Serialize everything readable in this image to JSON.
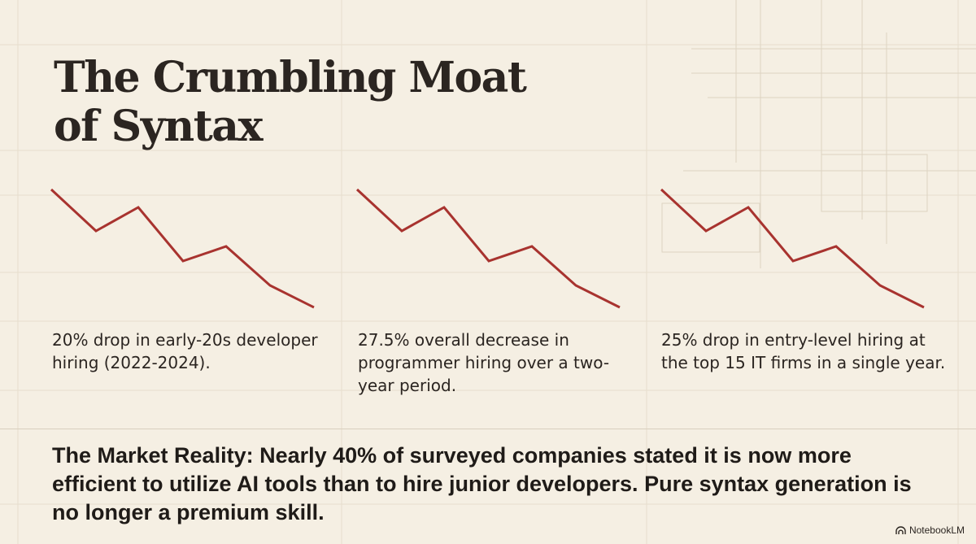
{
  "title": {
    "line1": "The Crumbling Moat",
    "line2": "of Syntax"
  },
  "stats": [
    {
      "text": "20% drop in early-20s developer hiring (2022-2024).",
      "trend_icon": "declining-line-icon"
    },
    {
      "text": "27.5% overall decrease in programmer hiring over a two-year period.",
      "trend_icon": "declining-line-icon"
    },
    {
      "text": "25% drop in entry-level hiring at the top 15 IT firms in a single year.",
      "trend_icon": "declining-line-icon"
    }
  ],
  "market_reality": "The Market Reality: Nearly 40% of surveyed companies stated it is now more efficient to utilize AI tools than to hire junior developers. Pure syntax generation is no longer a premium skill.",
  "brand": {
    "name": "NotebookLM",
    "icon": "notebooklm-logo-icon"
  },
  "colors": {
    "background": "#f5efe3",
    "text": "#2b2521",
    "trend_line": "#a8332f",
    "grid": "#e4dccd"
  }
}
